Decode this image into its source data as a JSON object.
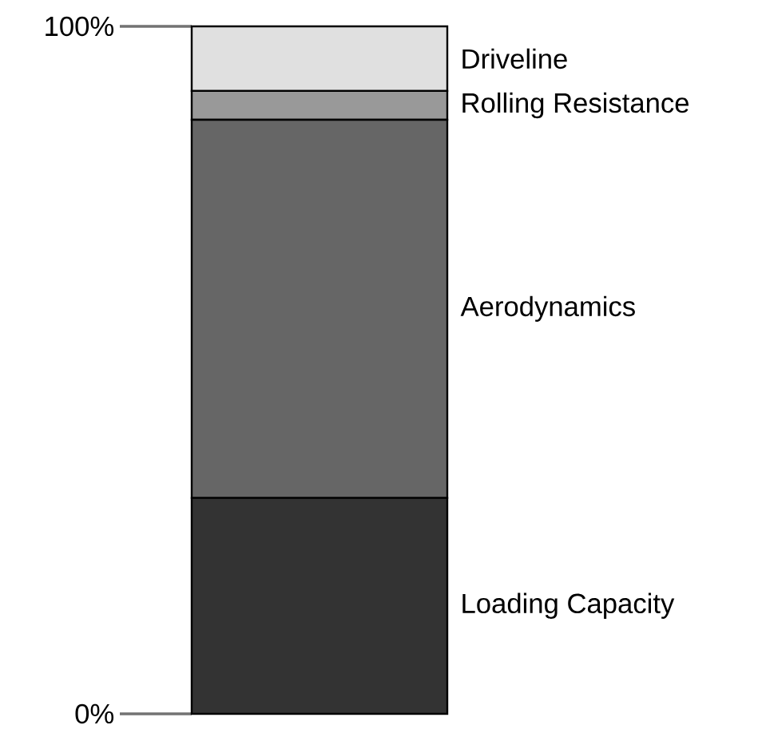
{
  "chart_data": {
    "type": "bar",
    "stacked": true,
    "categories": [
      null
    ],
    "ylim": [
      0,
      100
    ],
    "yticks": [
      {
        "value": 0,
        "label": "0%"
      },
      {
        "value": 100,
        "label": "100%"
      }
    ],
    "tick_labels": "y",
    "series": [
      {
        "name": "Loading Capacity",
        "color": "#333333",
        "values": [
          31.4
        ]
      },
      {
        "name": "Aerodynamics",
        "color": "#666666",
        "values": [
          55.0
        ]
      },
      {
        "name": "Rolling Resistance",
        "color": "#999999",
        "values": [
          4.2
        ]
      },
      {
        "name": "Driveline",
        "color": "#e0e0e0",
        "values": [
          9.4
        ]
      }
    ]
  }
}
